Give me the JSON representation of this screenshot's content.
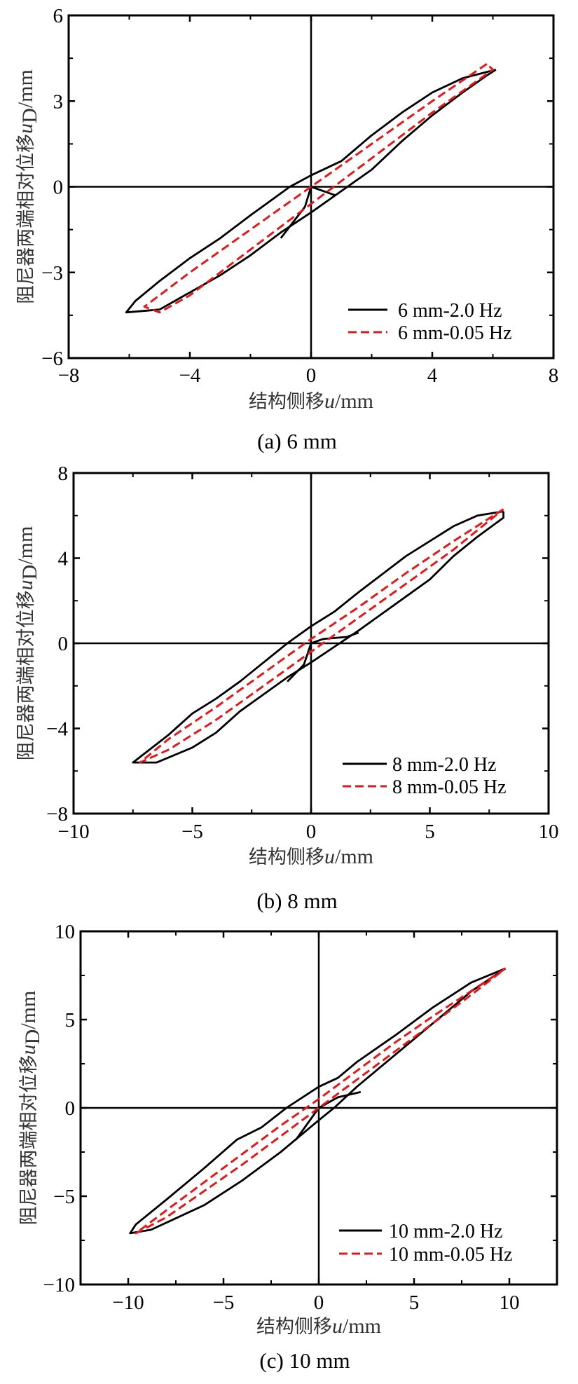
{
  "colors": {
    "black": "#000000",
    "red": "#e0191b"
  },
  "chart_data": [
    {
      "type": "line",
      "caption": "(a) 6 mm",
      "xlabel": {
        "cn": "结构侧移",
        "var": "u",
        "unit": "/mm"
      },
      "ylabel": {
        "cn": "阻尼器两端相对位移",
        "var": "u",
        "sub": "D",
        "unit": "/mm"
      },
      "xlim": [
        -8,
        8
      ],
      "ylim": [
        -6,
        6
      ],
      "xticks": [
        -8,
        -4,
        0,
        4,
        8
      ],
      "xtick_labels": [
        "−8",
        "−4",
        "0",
        "4",
        "8"
      ],
      "xminor": [
        -6,
        -2,
        2,
        6
      ],
      "yticks": [
        -6,
        -3,
        0,
        3,
        6
      ],
      "ytick_labels": [
        "−6",
        "−3",
        "0",
        "3",
        "6"
      ],
      "yminor": [
        -4.5,
        -1.5,
        1.5,
        4.5
      ],
      "legend_position": "bottom-right",
      "series": [
        {
          "name": "6 mm-2.0 Hz",
          "style": "solid",
          "color": "#000000",
          "segments": [
            [
              [
                6.1,
                4.1
              ],
              [
                5.0,
                3.8
              ],
              [
                4,
                3.3
              ],
              [
                3,
                2.6
              ],
              [
                2,
                1.8
              ],
              [
                1,
                0.9
              ],
              [
                0,
                0.4
              ],
              [
                -0.7,
                0
              ],
              [
                -2,
                -1.0
              ],
              [
                -3,
                -1.8
              ],
              [
                -4,
                -2.5
              ],
              [
                -5,
                -3.3
              ],
              [
                -5.8,
                -4.0
              ],
              [
                -6.1,
                -4.4
              ],
              [
                -5,
                -4.3
              ],
              [
                -4,
                -3.7
              ],
              [
                -3,
                -3.1
              ],
              [
                -2,
                -2.4
              ],
              [
                -1,
                -1.6
              ],
              [
                0,
                -0.9
              ],
              [
                1.2,
                0
              ],
              [
                2,
                0.6
              ],
              [
                3,
                1.6
              ],
              [
                4,
                2.5
              ],
              [
                5,
                3.3
              ],
              [
                5.8,
                3.9
              ],
              [
                6.1,
                4.1
              ]
            ],
            [
              [
                0.8,
                -0.3
              ],
              [
                0,
                0
              ],
              [
                -0.2,
                -0.7
              ],
              [
                -1,
                -1.8
              ]
            ]
          ]
        },
        {
          "name": "6 mm-0.05 Hz",
          "style": "dashed",
          "color": "#e0191b",
          "segments": [
            [
              [
                5.8,
                4.3
              ],
              [
                4,
                3.0
              ],
              [
                2,
                1.5
              ],
              [
                0,
                0
              ],
              [
                -2,
                -1.5
              ],
              [
                -4,
                -3.0
              ],
              [
                -5.5,
                -4.2
              ],
              [
                -5,
                -4.4
              ],
              [
                -4,
                -3.8
              ],
              [
                -2,
                -2.2
              ],
              [
                0,
                -0.6
              ],
              [
                2,
                1.0
              ],
              [
                4,
                2.6
              ],
              [
                6,
                4.1
              ],
              [
                5.8,
                4.3
              ]
            ]
          ]
        }
      ]
    },
    {
      "type": "line",
      "caption": "(b) 8 mm",
      "xlabel": {
        "cn": "结构侧移",
        "var": "u",
        "unit": "/mm"
      },
      "ylabel": {
        "cn": "阻尼器两端相对位移",
        "var": "u",
        "sub": "D",
        "unit": "/mm"
      },
      "xlim": [
        -10,
        10
      ],
      "ylim": [
        -8,
        8
      ],
      "xticks": [
        -10,
        -5,
        0,
        5,
        10
      ],
      "xtick_labels": [
        "−10",
        "−5",
        "0",
        "5",
        "10"
      ],
      "xminor": [
        -7.5,
        -2.5,
        2.5,
        7.5
      ],
      "yticks": [
        -8,
        -4,
        0,
        4,
        8
      ],
      "ytick_labels": [
        "−8",
        "−4",
        "0",
        "4",
        "8"
      ],
      "yminor": [
        -6,
        -2,
        2,
        6
      ],
      "legend_position": "bottom-right",
      "series": [
        {
          "name": "8 mm-2.0 Hz",
          "style": "solid",
          "color": "#000000",
          "segments": [
            [
              [
                8.1,
                6.2
              ],
              [
                7,
                6.0
              ],
              [
                6,
                5.5
              ],
              [
                4,
                4.1
              ],
              [
                2,
                2.4
              ],
              [
                1,
                1.5
              ],
              [
                0,
                0.8
              ],
              [
                -1,
                0
              ],
              [
                -2,
                -0.9
              ],
              [
                -3,
                -1.8
              ],
              [
                -4,
                -2.6
              ],
              [
                -5,
                -3.3
              ],
              [
                -6,
                -4.3
              ],
              [
                -7.5,
                -5.6
              ],
              [
                -6.5,
                -5.6
              ],
              [
                -5,
                -4.9
              ],
              [
                -4,
                -4.2
              ],
              [
                -3,
                -3.2
              ],
              [
                -2,
                -2.4
              ],
              [
                -1,
                -1.6
              ],
              [
                0,
                -0.9
              ],
              [
                1.2,
                0
              ],
              [
                2,
                0.6
              ],
              [
                3,
                1.4
              ],
              [
                4,
                2.2
              ],
              [
                5,
                3.0
              ],
              [
                6,
                4.1
              ],
              [
                7,
                5.0
              ],
              [
                8.1,
                5.9
              ],
              [
                8.1,
                6.2
              ]
            ],
            [
              [
                2,
                0.5
              ],
              [
                1.5,
                0.3
              ],
              [
                0.5,
                0.2
              ],
              [
                0,
                0
              ],
              [
                -0.3,
                -1.0
              ],
              [
                -1.0,
                -1.8
              ]
            ]
          ]
        },
        {
          "name": "8 mm-0.05 Hz",
          "style": "dashed",
          "color": "#e0191b",
          "segments": [
            [
              [
                8.1,
                6.3
              ],
              [
                6,
                4.8
              ],
              [
                4,
                3.3
              ],
              [
                2,
                1.7
              ],
              [
                0,
                0.2
              ],
              [
                -2,
                -1.4
              ],
              [
                -4,
                -3.0
              ],
              [
                -6,
                -4.5
              ],
              [
                -7.2,
                -5.6
              ],
              [
                -6,
                -5.0
              ],
              [
                -4,
                -3.6
              ],
              [
                -2,
                -2.0
              ],
              [
                0,
                -0.4
              ],
              [
                2,
                1.2
              ],
              [
                4,
                2.8
              ],
              [
                6,
                4.4
              ],
              [
                8.1,
                6.3
              ]
            ]
          ]
        }
      ]
    },
    {
      "type": "line",
      "caption": "(c) 10 mm",
      "xlabel": {
        "cn": "结构侧移",
        "var": "u",
        "unit": "/mm"
      },
      "ylabel": {
        "cn": "阻尼器两端相对位移",
        "var": "u",
        "sub": "D",
        "unit": "/mm"
      },
      "xlim": [
        -12.5,
        12.5
      ],
      "ylim": [
        -10,
        10
      ],
      "xticks": [
        -10,
        -5,
        0,
        5,
        10
      ],
      "xtick_labels": [
        "−10",
        "−5",
        "0",
        "5",
        "10"
      ],
      "xminor": [
        -7.5,
        -2.5,
        2.5,
        7.5
      ],
      "yticks": [
        -10,
        -5,
        0,
        5,
        10
      ],
      "ytick_labels": [
        "−10",
        "−5",
        "0",
        "5",
        "10"
      ],
      "yminor": [
        -7.5,
        -2.5,
        2.5,
        7.5
      ],
      "legend_position": "bottom-right",
      "series": [
        {
          "name": "10 mm-2.0 Hz",
          "style": "solid",
          "color": "#000000",
          "segments": [
            [
              [
                9.8,
                7.9
              ],
              [
                8,
                7.1
              ],
              [
                6,
                5.7
              ],
              [
                4,
                4.1
              ],
              [
                2,
                2.6
              ],
              [
                1,
                1.7
              ],
              [
                0,
                1.2
              ],
              [
                -1.7,
                0
              ],
              [
                -3,
                -1.1
              ],
              [
                -4.3,
                -1.8
              ],
              [
                -6,
                -3.4
              ],
              [
                -8,
                -5.2
              ],
              [
                -9.6,
                -6.6
              ],
              [
                -9.9,
                -7.1
              ],
              [
                -8.8,
                -6.9
              ],
              [
                -7,
                -6.0
              ],
              [
                -6,
                -5.5
              ],
              [
                -4,
                -4.1
              ],
              [
                -2,
                -2.5
              ],
              [
                0,
                -0.7
              ],
              [
                0.8,
                0
              ],
              [
                2,
                1.2
              ],
              [
                4,
                3.0
              ],
              [
                6,
                4.8
              ],
              [
                8,
                6.6
              ],
              [
                9.8,
                7.9
              ]
            ],
            [
              [
                2.2,
                0.9
              ],
              [
                1,
                0.6
              ],
              [
                0,
                0
              ],
              [
                -1.2,
                -1.8
              ]
            ]
          ]
        },
        {
          "name": "10 mm-0.05 Hz",
          "style": "dashed",
          "color": "#e0191b",
          "segments": [
            [
              [
                9.8,
                7.9
              ],
              [
                6,
                5.2
              ],
              [
                4,
                3.7
              ],
              [
                2,
                2.1
              ],
              [
                0,
                0.5
              ],
              [
                -2,
                -1.0
              ],
              [
                -4,
                -2.6
              ],
              [
                -6,
                -4.2
              ],
              [
                -8,
                -5.8
              ],
              [
                -9.6,
                -7.1
              ],
              [
                -8,
                -6.2
              ],
              [
                -6,
                -4.7
              ],
              [
                -4,
                -3.2
              ],
              [
                -2,
                -1.6
              ],
              [
                0,
                0
              ],
              [
                2,
                1.6
              ],
              [
                4,
                3.2
              ],
              [
                6,
                4.8
              ],
              [
                8,
                6.4
              ],
              [
                9.8,
                7.9
              ]
            ]
          ]
        }
      ]
    }
  ]
}
